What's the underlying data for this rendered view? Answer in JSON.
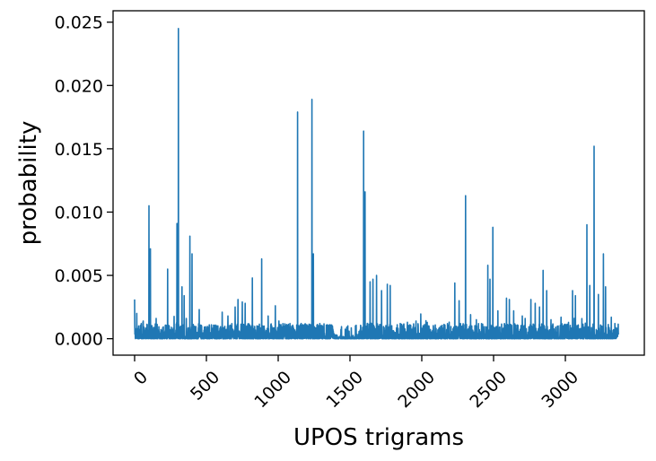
{
  "chart_data": {
    "type": "line",
    "title": "",
    "xlabel": "UPOS trigrams",
    "ylabel": "probability",
    "xlim": [
      -150,
      3550
    ],
    "ylim": [
      -0.0013,
      0.0259
    ],
    "grid": false,
    "legend": "none",
    "series_color": "#1f77b4",
    "x_ticks": [
      0,
      500,
      1000,
      1500,
      2000,
      2500,
      3000
    ],
    "x_tick_labels": [
      "0",
      "500",
      "1000",
      "1500",
      "2000",
      "2500",
      "3000"
    ],
    "y_ticks": [
      0,
      0.005,
      0.01,
      0.015,
      0.02,
      0.025
    ],
    "y_tick_labels": [
      "0.000",
      "0.005",
      "0.010",
      "0.015",
      "0.020",
      "0.025"
    ],
    "n_points": 3370,
    "peaks": [
      [
        0,
        0.0031
      ],
      [
        15,
        0.002
      ],
      [
        60,
        0.0014
      ],
      [
        100,
        0.0105
      ],
      [
        110,
        0.0071
      ],
      [
        150,
        0.0016
      ],
      [
        230,
        0.0055
      ],
      [
        295,
        0.0091
      ],
      [
        305,
        0.0245
      ],
      [
        330,
        0.0041
      ],
      [
        345,
        0.0034
      ],
      [
        360,
        0.0016
      ],
      [
        385,
        0.0081
      ],
      [
        400,
        0.0067
      ],
      [
        450,
        0.0023
      ],
      [
        520,
        0.0011
      ],
      [
        610,
        0.0021
      ],
      [
        650,
        0.0018
      ],
      [
        700,
        0.0025
      ],
      [
        720,
        0.0031
      ],
      [
        750,
        0.0029
      ],
      [
        770,
        0.0028
      ],
      [
        820,
        0.0048
      ],
      [
        885,
        0.0063
      ],
      [
        930,
        0.0018
      ],
      [
        980,
        0.0026
      ],
      [
        1005,
        0.0014
      ],
      [
        1040,
        0.0008
      ],
      [
        1135,
        0.0179
      ],
      [
        1160,
        0.0012
      ],
      [
        1235,
        0.0189
      ],
      [
        1245,
        0.0067
      ],
      [
        1290,
        0.0012
      ],
      [
        1350,
        0.0004
      ],
      [
        1440,
        0.0006
      ],
      [
        1540,
        0.0007
      ],
      [
        1595,
        0.0164
      ],
      [
        1605,
        0.0116
      ],
      [
        1640,
        0.0045
      ],
      [
        1660,
        0.0047
      ],
      [
        1685,
        0.005
      ],
      [
        1720,
        0.0038
      ],
      [
        1760,
        0.0043
      ],
      [
        1780,
        0.0042
      ],
      [
        1850,
        0.0012
      ],
      [
        1900,
        0.0013
      ],
      [
        1960,
        0.0014
      ],
      [
        2050,
        0.001
      ],
      [
        2100,
        0.0008
      ],
      [
        2150,
        0.0006
      ],
      [
        2230,
        0.0044
      ],
      [
        2260,
        0.003
      ],
      [
        2305,
        0.0113
      ],
      [
        2340,
        0.0019
      ],
      [
        2380,
        0.0015
      ],
      [
        2460,
        0.0058
      ],
      [
        2475,
        0.0047
      ],
      [
        2495,
        0.0088
      ],
      [
        2530,
        0.0022
      ],
      [
        2590,
        0.0032
      ],
      [
        2610,
        0.0031
      ],
      [
        2640,
        0.0022
      ],
      [
        2700,
        0.0018
      ],
      [
        2720,
        0.0016
      ],
      [
        2760,
        0.0031
      ],
      [
        2790,
        0.0028
      ],
      [
        2820,
        0.0025
      ],
      [
        2845,
        0.0054
      ],
      [
        2870,
        0.0038
      ],
      [
        2900,
        0.0015
      ],
      [
        2970,
        0.0017
      ],
      [
        3050,
        0.0038
      ],
      [
        3070,
        0.0034
      ],
      [
        3150,
        0.009
      ],
      [
        3170,
        0.0042
      ],
      [
        3200,
        0.0152
      ],
      [
        3230,
        0.0035
      ],
      [
        3265,
        0.0067
      ],
      [
        3280,
        0.0041
      ],
      [
        3320,
        0.0017
      ],
      [
        3345,
        0.0012
      ]
    ]
  }
}
